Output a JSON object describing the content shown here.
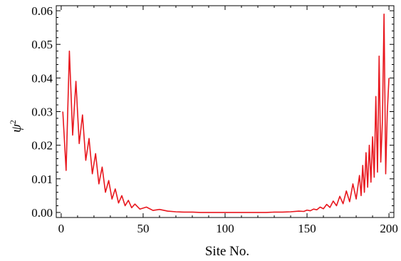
{
  "chart_data": {
    "type": "line",
    "title": "",
    "xlabel": "Site No.",
    "ylabel": "ψ",
    "ylabel_superscript": "2",
    "xlim": [
      -3,
      203
    ],
    "ylim": [
      -0.0015,
      0.0615
    ],
    "x_ticks": [
      {
        "value": 0,
        "label": "0"
      },
      {
        "value": 50,
        "label": "50"
      },
      {
        "value": 100,
        "label": "100"
      },
      {
        "value": 150,
        "label": "150"
      },
      {
        "value": 200,
        "label": "200"
      }
    ],
    "y_ticks": [
      {
        "value": 0.0,
        "label": "0.00"
      },
      {
        "value": 0.01,
        "label": "0.01"
      },
      {
        "value": 0.02,
        "label": "0.02"
      },
      {
        "value": 0.03,
        "label": "0.03"
      },
      {
        "value": 0.04,
        "label": "0.04"
      },
      {
        "value": 0.05,
        "label": "0.05"
      },
      {
        "value": 0.06,
        "label": "0.06"
      }
    ],
    "grid": false,
    "legend": "none",
    "series": [
      {
        "color": "#e8171e",
        "x": [
          1,
          3,
          5,
          7,
          9,
          11,
          13,
          15,
          17,
          19,
          21,
          23,
          25,
          27,
          29,
          31,
          33,
          35,
          37,
          39,
          41,
          43,
          45,
          48,
          52,
          56,
          60,
          65,
          70,
          75,
          80,
          85,
          90,
          95,
          100,
          105,
          110,
          115,
          120,
          125,
          130,
          135,
          140,
          145,
          148,
          150,
          152,
          154,
          156,
          158,
          160,
          162,
          164,
          166,
          168,
          170,
          172,
          174,
          176,
          178,
          180,
          182,
          183,
          184,
          185,
          186,
          187,
          188,
          189,
          190,
          191,
          192,
          193,
          194,
          195,
          196,
          197,
          198,
          199,
          200
        ],
        "y": [
          0.03,
          0.0125,
          0.048,
          0.023,
          0.039,
          0.0205,
          0.029,
          0.0155,
          0.022,
          0.0115,
          0.0175,
          0.0085,
          0.0135,
          0.006,
          0.0095,
          0.004,
          0.007,
          0.0028,
          0.005,
          0.002,
          0.0036,
          0.0014,
          0.0025,
          0.001,
          0.0016,
          0.0006,
          0.0009,
          0.0004,
          0.0002,
          0.0001,
          0.0001,
          0.0,
          0.0,
          0.0,
          0.0,
          0.0,
          0.0,
          0.0,
          0.0,
          0.0,
          0.0001,
          0.0001,
          0.0002,
          0.0004,
          0.0003,
          0.0007,
          0.0005,
          0.001,
          0.0008,
          0.0016,
          0.0011,
          0.0024,
          0.0015,
          0.0034,
          0.002,
          0.0048,
          0.0026,
          0.0064,
          0.0032,
          0.0085,
          0.004,
          0.011,
          0.005,
          0.014,
          0.006,
          0.0178,
          0.0075,
          0.02,
          0.009,
          0.0225,
          0.0105,
          0.0345,
          0.012,
          0.0465,
          0.015,
          0.027,
          0.059,
          0.0115,
          0.03,
          0.04
        ]
      }
    ]
  }
}
